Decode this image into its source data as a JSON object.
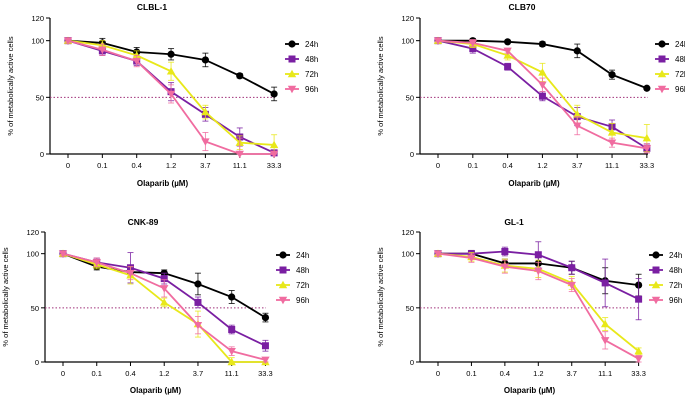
{
  "colors": {
    "24h": "#000000",
    "48h": "#7a1fa2",
    "72h": "#e8e81a",
    "96h": "#f06ca0",
    "axis": "#000000",
    "reference_line": "#a0307a"
  },
  "chart_data": [
    {
      "type": "line",
      "title": "CLBL-1",
      "xlabel": "Olaparib (µM)",
      "ylabel": "% of metabolically active cells",
      "categories": [
        "0",
        "0.1",
        "0.4",
        "1.2",
        "3.7",
        "11.1",
        "33.3"
      ],
      "ylim": [
        0,
        120
      ],
      "yticks": [
        "0",
        "50",
        "100",
        "120"
      ],
      "reference_line": 50,
      "legend_position": "right",
      "series": [
        {
          "name": "24h",
          "values": [
            100,
            98,
            90,
            88,
            83,
            69,
            53
          ],
          "errors": [
            2,
            4,
            4,
            5,
            6,
            2,
            6
          ]
        },
        {
          "name": "48h",
          "values": [
            100,
            91,
            82,
            55,
            35,
            15,
            1
          ],
          "errors": [
            2,
            4,
            4,
            8,
            6,
            8,
            2
          ]
        },
        {
          "name": "72h",
          "values": [
            100,
            96,
            87,
            73,
            37,
            10,
            8
          ],
          "errors": [
            2,
            4,
            4,
            8,
            6,
            6,
            9
          ]
        },
        {
          "name": "96h",
          "values": [
            100,
            92,
            82,
            53,
            11,
            0,
            0
          ],
          "errors": [
            2,
            5,
            5,
            8,
            8,
            14,
            2
          ]
        }
      ]
    },
    {
      "type": "line",
      "title": "CLB70",
      "xlabel": "Olaparib (µM)",
      "ylabel": "% of metabolically active cells",
      "categories": [
        "0",
        "0.1",
        "0.4",
        "1.2",
        "3.7",
        "11.1",
        "33.3"
      ],
      "ylim": [
        0,
        120
      ],
      "yticks": [
        "0",
        "50",
        "100",
        "120"
      ],
      "reference_line": 50,
      "legend_position": "right",
      "series": [
        {
          "name": "24h",
          "values": [
            100,
            100,
            99,
            97,
            91,
            70,
            58
          ],
          "errors": [
            1,
            2,
            1,
            2,
            6,
            4,
            1
          ]
        },
        {
          "name": "48h",
          "values": [
            100,
            93,
            77,
            51,
            33,
            24,
            5
          ],
          "errors": [
            1,
            4,
            3,
            4,
            8,
            6,
            4
          ]
        },
        {
          "name": "72h",
          "values": [
            100,
            97,
            87,
            72,
            35,
            19,
            14
          ],
          "errors": [
            1,
            3,
            4,
            8,
            8,
            8,
            12
          ]
        },
        {
          "name": "96h",
          "values": [
            100,
            98,
            91,
            61,
            25,
            10,
            5
          ],
          "errors": [
            1,
            3,
            2,
            6,
            8,
            4,
            4
          ]
        }
      ]
    },
    {
      "type": "line",
      "title": "CNK-89",
      "xlabel": "Olaparib (µM)",
      "ylabel": "% of metabolically active cells",
      "categories": [
        "0",
        "0.1",
        "0.4",
        "1.2",
        "3.7",
        "11.1",
        "33.3"
      ],
      "ylim": [
        0,
        120
      ],
      "yticks": [
        "0",
        "50",
        "100",
        "120"
      ],
      "reference_line": 50,
      "legend_position": "right",
      "series": [
        {
          "name": "24h",
          "values": [
            100,
            88,
            83,
            82,
            72,
            60,
            41
          ],
          "errors": [
            2,
            3,
            4,
            3,
            10,
            6,
            4
          ]
        },
        {
          "name": "48h",
          "values": [
            100,
            92,
            87,
            77,
            55,
            30,
            15
          ],
          "errors": [
            2,
            4,
            14,
            5,
            5,
            4,
            5
          ]
        },
        {
          "name": "72h",
          "values": [
            100,
            90,
            80,
            55,
            35,
            0,
            0
          ],
          "errors": [
            2,
            4,
            8,
            4,
            12,
            4,
            3
          ]
        },
        {
          "name": "96h",
          "values": [
            100,
            92,
            82,
            68,
            34,
            10,
            2
          ],
          "errors": [
            2,
            4,
            6,
            8,
            8,
            4,
            2
          ]
        }
      ]
    },
    {
      "type": "line",
      "title": "GL-1",
      "xlabel": "Olaparib (µM)",
      "ylabel": "% of metabolically active cells",
      "categories": [
        "0",
        "0.1",
        "0.4",
        "1.2",
        "3.7",
        "11.1",
        "33.3"
      ],
      "ylim": [
        0,
        120
      ],
      "yticks": [
        "0",
        "50",
        "100",
        "120"
      ],
      "reference_line": 50,
      "legend_position": "right",
      "series": [
        {
          "name": "24h",
          "values": [
            100,
            100,
            91,
            91,
            87,
            75,
            71
          ],
          "errors": [
            2,
            3,
            4,
            6,
            6,
            12,
            10
          ]
        },
        {
          "name": "48h",
          "values": [
            100,
            100,
            102,
            99,
            87,
            73,
            58
          ],
          "errors": [
            2,
            3,
            4,
            12,
            6,
            22,
            19
          ]
        },
        {
          "name": "72h",
          "values": [
            100,
            97,
            89,
            86,
            73,
            35,
            10
          ],
          "errors": [
            2,
            4,
            6,
            8,
            6,
            6,
            3
          ]
        },
        {
          "name": "96h",
          "values": [
            100,
            96,
            88,
            84,
            71,
            20,
            3
          ],
          "errors": [
            2,
            4,
            6,
            8,
            6,
            8,
            3
          ]
        }
      ]
    }
  ]
}
